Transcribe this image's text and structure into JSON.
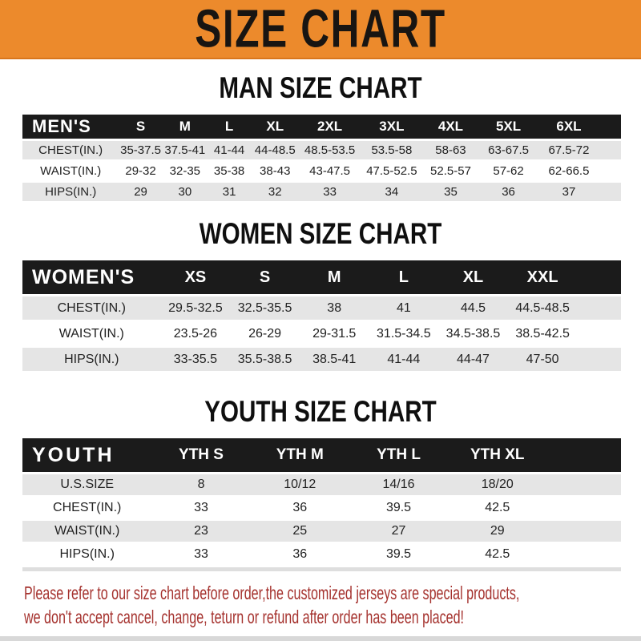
{
  "banner": {
    "title": "SIZE CHART"
  },
  "chart_data": [
    {
      "type": "table",
      "title": "MAN SIZE CHART",
      "corner": "MEN'S",
      "columns": [
        "S",
        "M",
        "L",
        "XL",
        "2XL",
        "3XL",
        "4XL",
        "5XL",
        "6XL"
      ],
      "rows": [
        {
          "label": "CHEST(IN.)",
          "values": [
            "35-37.5",
            "37.5-41",
            "41-44",
            "44-48.5",
            "48.5-53.5",
            "53.5-58",
            "58-63",
            "63-67.5",
            "67.5-72"
          ]
        },
        {
          "label": "WAIST(IN.)",
          "values": [
            "29-32",
            "32-35",
            "35-38",
            "38-43",
            "43-47.5",
            "47.5-52.5",
            "52.5-57",
            "57-62",
            "62-66.5"
          ]
        },
        {
          "label": "HIPS(IN.)",
          "values": [
            "29",
            "30",
            "31",
            "32",
            "33",
            "34",
            "35",
            "36",
            "37"
          ]
        }
      ]
    },
    {
      "type": "table",
      "title": "WOMEN SIZE CHART",
      "corner": "WOMEN'S",
      "columns": [
        "XS",
        "S",
        "M",
        "L",
        "XL",
        "XXL"
      ],
      "rows": [
        {
          "label": "CHEST(IN.)",
          "values": [
            "29.5-32.5",
            "32.5-35.5",
            "38",
            "41",
            "44.5",
            "44.5-48.5"
          ]
        },
        {
          "label": "WAIST(IN.)",
          "values": [
            "23.5-26",
            "26-29",
            "29-31.5",
            "31.5-34.5",
            "34.5-38.5",
            "38.5-42.5"
          ]
        },
        {
          "label": "HIPS(IN.)",
          "values": [
            "33-35.5",
            "35.5-38.5",
            "38.5-41",
            "41-44",
            "44-47",
            "47-50"
          ]
        }
      ]
    },
    {
      "type": "table",
      "title": "YOUTH SIZE CHART",
      "corner": "YOUTH",
      "columns": [
        "YTH S",
        "YTH M",
        "YTH L",
        "YTH XL"
      ],
      "rows": [
        {
          "label": "U.S.SIZE",
          "values": [
            "8",
            "10/12",
            "14/16",
            "18/20"
          ]
        },
        {
          "label": "CHEST(IN.)",
          "values": [
            "33",
            "36",
            "39.5",
            "42.5"
          ]
        },
        {
          "label": "WAIST(IN.)",
          "values": [
            "23",
            "25",
            "27",
            "29"
          ]
        },
        {
          "label": "HIPS(IN.)",
          "values": [
            "33",
            "36",
            "39.5",
            "42.5"
          ]
        }
      ]
    }
  ],
  "footer": {
    "line1": "Please refer to our size chart before order,the customized jerseys are special products,",
    "line2": "we don't accept cancel, change, teturn or refund after order has been placed!"
  },
  "colors": {
    "banner_orange": "#ec8a2c",
    "header_black": "#1b1b1b",
    "row_gray": "#e5e5e5",
    "note_red": "#a5322e"
  }
}
